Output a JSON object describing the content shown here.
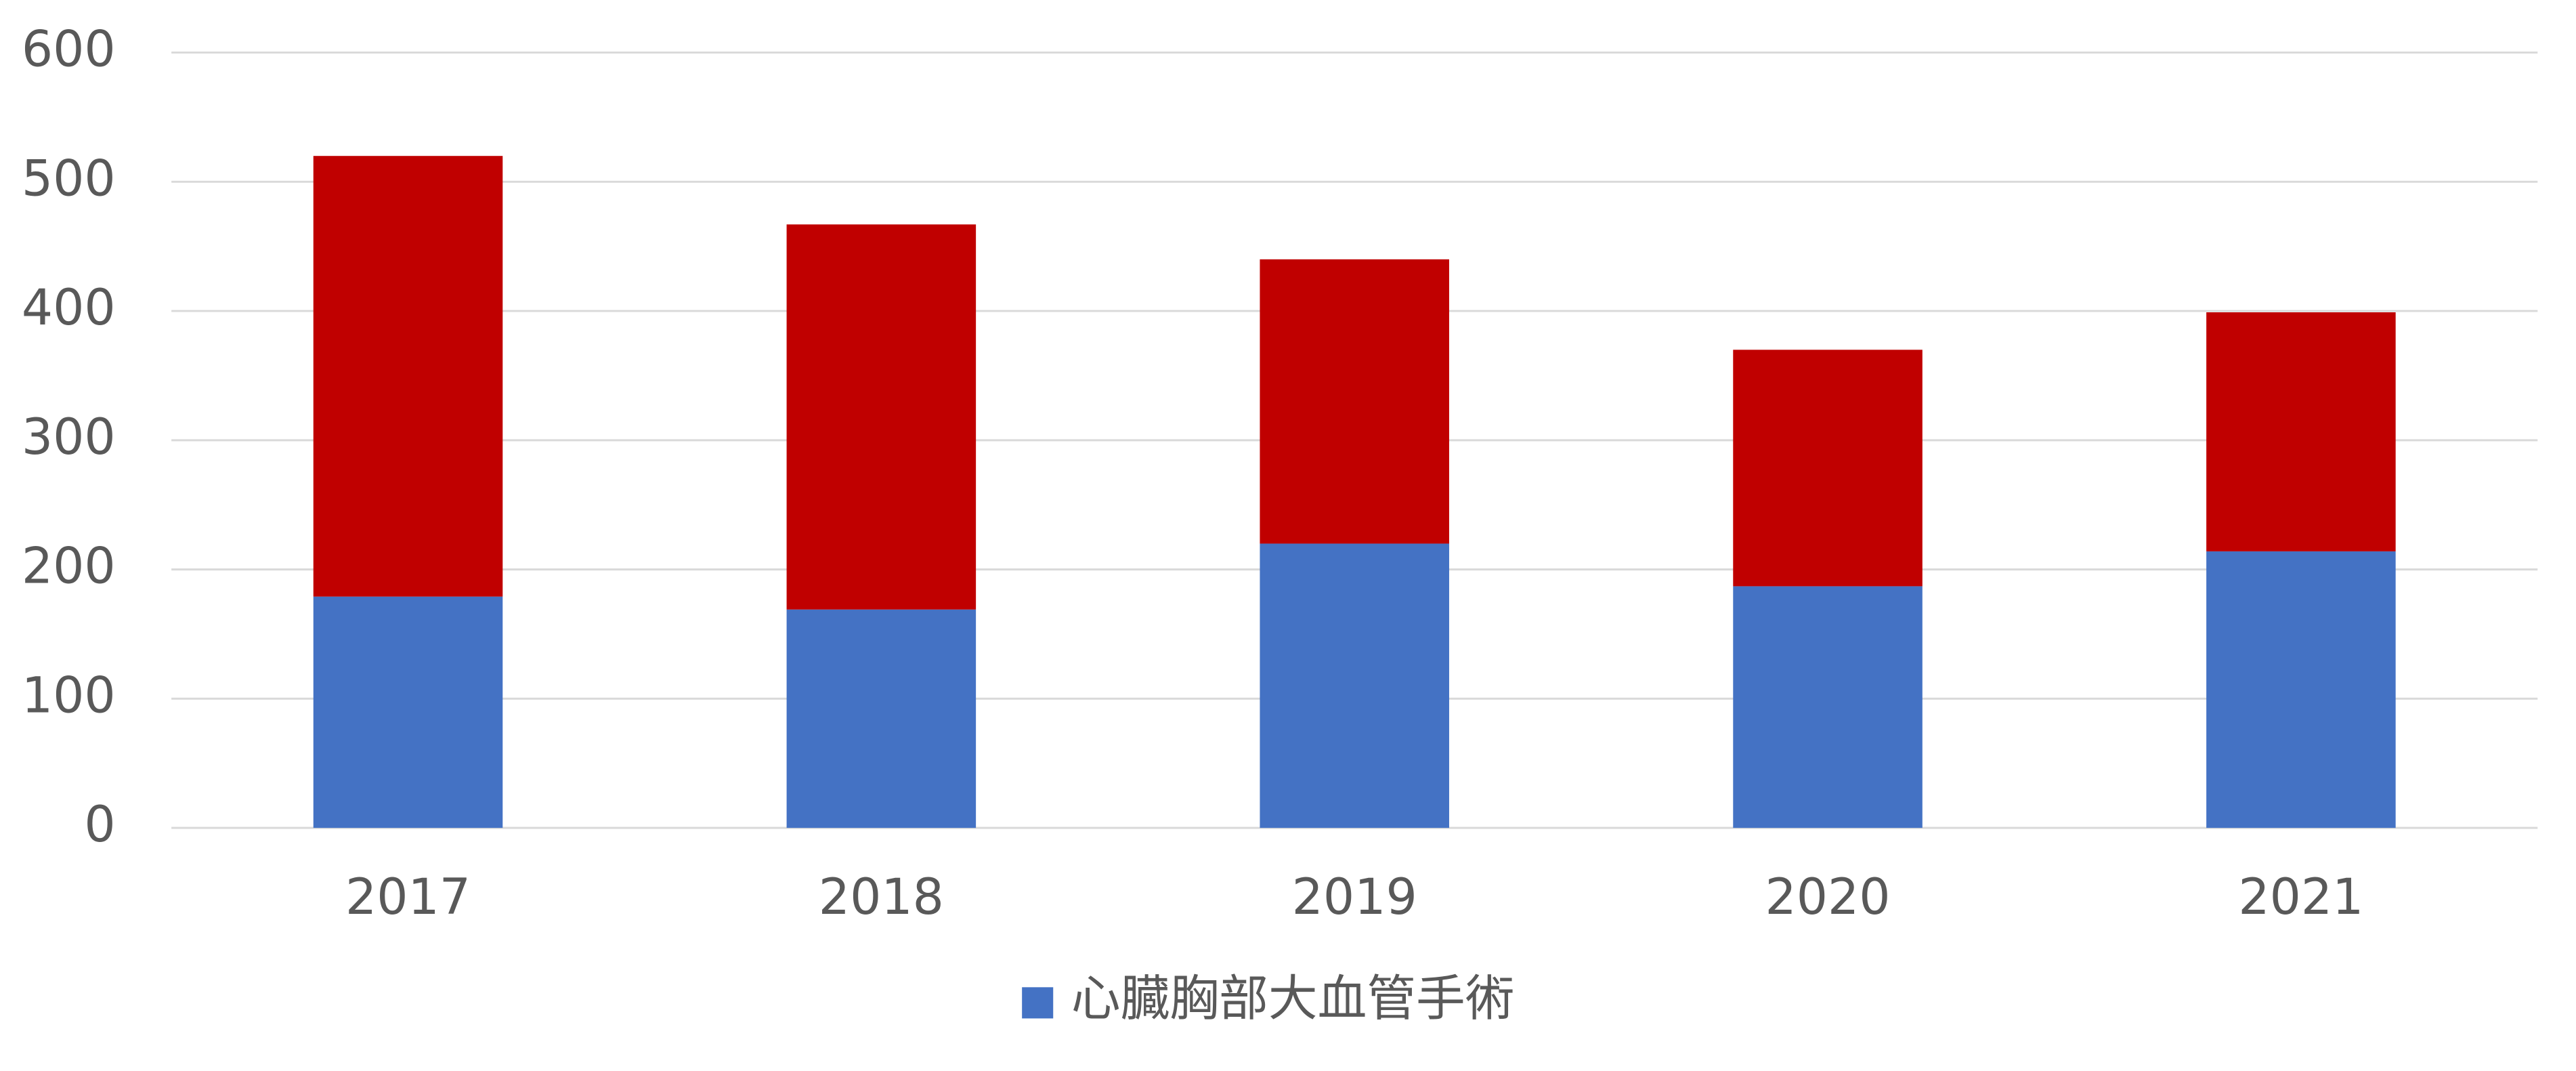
{
  "chart_data": {
    "type": "stacked_bar",
    "categories": [
      "2017",
      "2018",
      "2019",
      "2020",
      "2021"
    ],
    "series": [
      {
        "name": "心臓胸部大血管手術",
        "color": "#4472c4",
        "values": [
          179,
          169,
          220,
          187,
          214
        ]
      },
      {
        "color": "#c00000",
        "values": [
          341,
          298,
          220,
          183,
          185
        ]
      }
    ],
    "ylim": [
      0,
      600
    ],
    "yticks": [
      0,
      100,
      200,
      300,
      400,
      500,
      600
    ],
    "grid": true,
    "legend": "bottom"
  }
}
